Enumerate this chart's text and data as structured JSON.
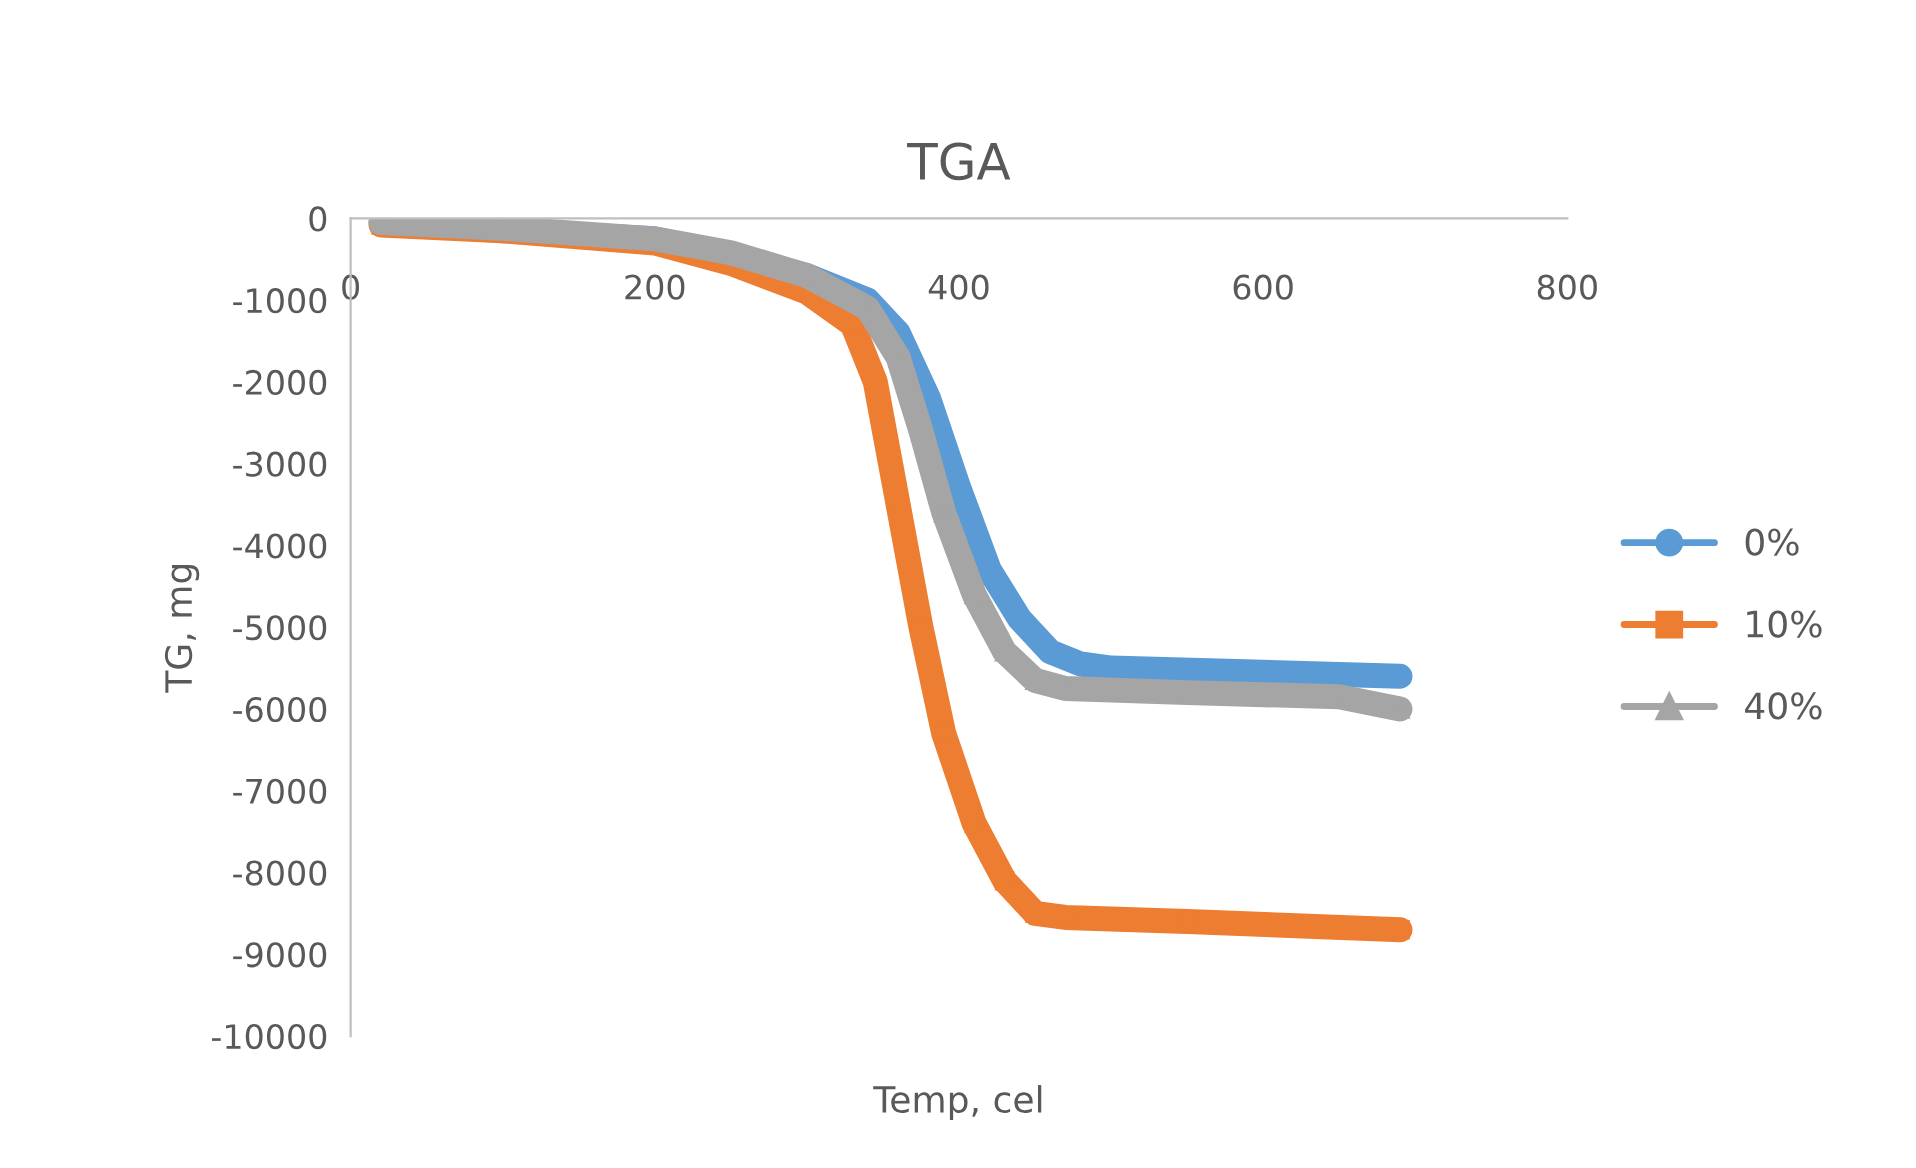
{
  "chart_data": {
    "type": "line",
    "title": "TGA",
    "xlabel": "Temp, cel",
    "ylabel": "TG, mg",
    "xlim": [
      0,
      800
    ],
    "xticks": [
      0,
      200,
      400,
      600,
      800
    ],
    "ylim": [
      -10000,
      0
    ],
    "yticks": [
      -10000,
      -9000,
      -8000,
      -7000,
      -6000,
      -5000,
      -4000,
      -3000,
      -2000,
      -1000,
      0
    ],
    "grid": false,
    "legend": "right",
    "series": [
      {
        "name": "0%",
        "color": "#5b9bd5",
        "marker": "circle",
        "x": [
          20,
          100,
          200,
          250,
          300,
          340,
          360,
          380,
          400,
          420,
          440,
          460,
          480,
          500,
          600,
          690
        ],
        "values": [
          -50,
          -150,
          -250,
          -450,
          -700,
          -1000,
          -1400,
          -2200,
          -3300,
          -4300,
          -4900,
          -5300,
          -5450,
          -5500,
          -5550,
          -5600
        ]
      },
      {
        "name": "10%",
        "color": "#ed7d31",
        "marker": "square",
        "x": [
          20,
          100,
          200,
          250,
          300,
          330,
          345,
          360,
          375,
          390,
          410,
          430,
          450,
          470,
          550,
          690
        ],
        "values": [
          -80,
          -150,
          -300,
          -550,
          -900,
          -1300,
          -2000,
          -3500,
          -5000,
          -6300,
          -7400,
          -8100,
          -8500,
          -8550,
          -8600,
          -8700
        ]
      },
      {
        "name": "40%",
        "color": "#a5a5a5",
        "marker": "triangle",
        "x": [
          20,
          100,
          200,
          250,
          300,
          340,
          360,
          375,
          390,
          410,
          430,
          450,
          470,
          550,
          650,
          690
        ],
        "values": [
          -50,
          -120,
          -250,
          -420,
          -700,
          -1100,
          -1700,
          -2600,
          -3600,
          -4600,
          -5300,
          -5650,
          -5750,
          -5800,
          -5850,
          -6000
        ]
      }
    ]
  }
}
